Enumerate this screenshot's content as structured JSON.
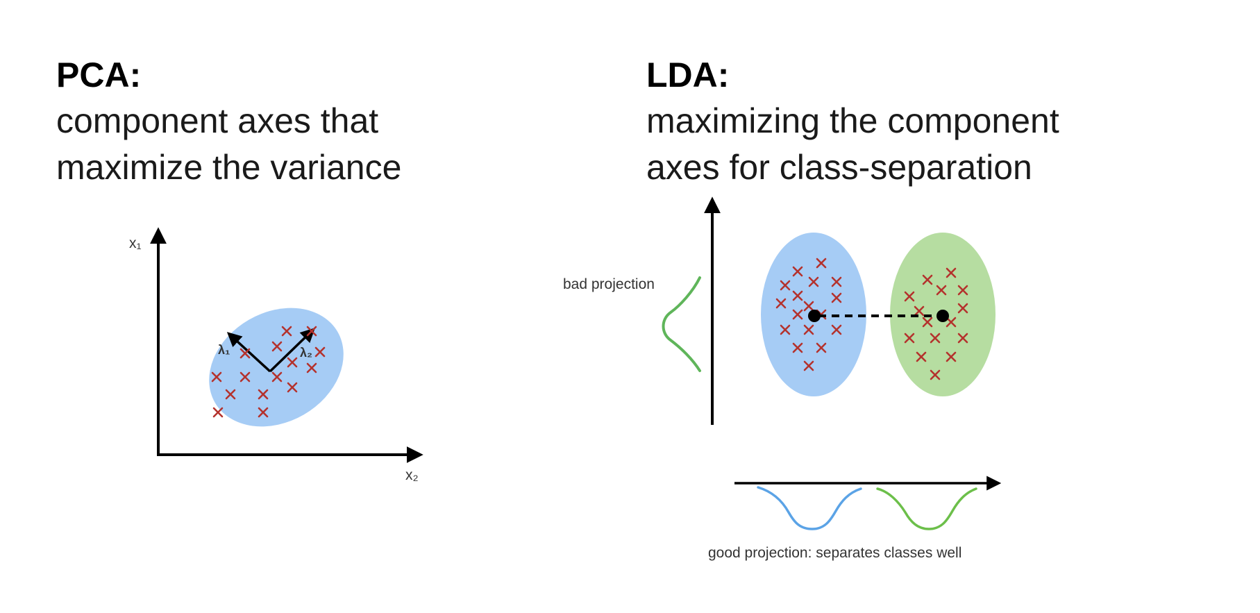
{
  "pca": {
    "title": "PCA:",
    "subtitle_line1": "component axes that",
    "subtitle_line2": "maximize the variance",
    "axis_vertical": "x₁",
    "axis_horizontal": "x₂",
    "eigen1": "λ₁",
    "eigen2": "λ₂"
  },
  "lda": {
    "title": "LDA:",
    "subtitle_line1": "maximizing the component",
    "subtitle_line2": "axes for class-separation",
    "bad_label": "bad projection",
    "good_label": "good projection: separates classes well"
  },
  "colors": {
    "class_a": "#a6ccf5",
    "class_b": "#b6dda1",
    "marker": "#b4322d",
    "curve_a": "#5ba3e6",
    "curve_b": "#6cbf4a",
    "bad_curve": "#5fb55a"
  }
}
